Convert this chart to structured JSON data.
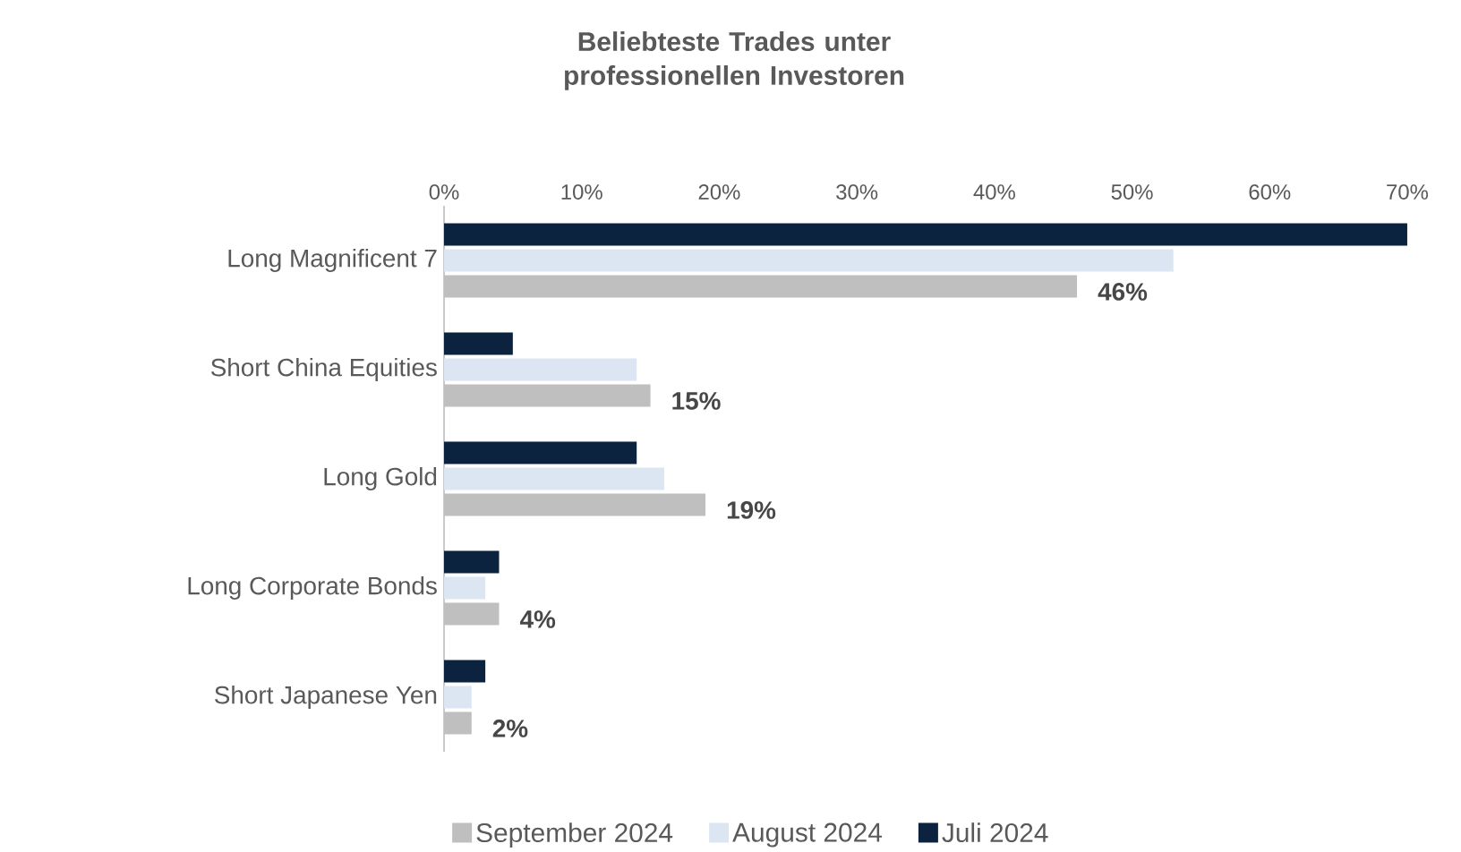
{
  "chart_data": {
    "type": "bar",
    "orientation": "horizontal",
    "title": "Beliebteste Trades unter professionellen Investoren",
    "categories": [
      "Long Magnificent 7",
      "Short China Equities",
      "Long Gold",
      "Long Corporate Bonds",
      "Short Japanese Yen"
    ],
    "series": [
      {
        "name": "September 2024",
        "color": "#bfbfbf",
        "values": [
          46,
          15,
          19,
          4,
          2
        ],
        "value_labels": [
          "46%",
          "15%",
          "19%",
          "4%",
          "2%"
        ]
      },
      {
        "name": "August 2024",
        "color": "#dce6f2",
        "values": [
          53,
          14,
          16,
          3,
          2
        ]
      },
      {
        "name": "Juli 2024",
        "color": "#0c2340",
        "values": [
          70,
          5,
          14,
          4,
          3
        ]
      }
    ],
    "xlim": [
      0,
      70
    ],
    "xticks": [
      {
        "value": 0,
        "label": "0%"
      },
      {
        "value": 10,
        "label": "10%"
      },
      {
        "value": 20,
        "label": "20%"
      },
      {
        "value": 30,
        "label": "30%"
      },
      {
        "value": 40,
        "label": "40%"
      },
      {
        "value": 50,
        "label": "50%"
      },
      {
        "value": 60,
        "label": "60%"
      },
      {
        "value": 70,
        "label": "70%"
      }
    ],
    "legend": "bottom"
  }
}
